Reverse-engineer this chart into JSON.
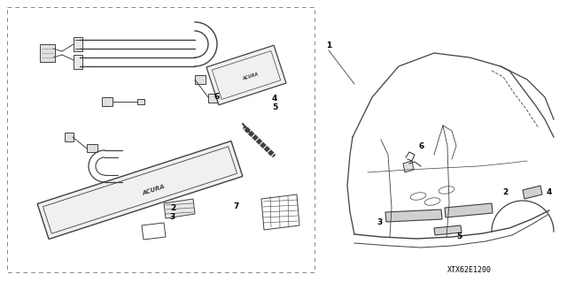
{
  "bg_color": "#ffffff",
  "line_color": "#404040",
  "part_number_text": "XTX62E1200",
  "font_size_label": 6.5,
  "font_size_part_num": 6.0
}
